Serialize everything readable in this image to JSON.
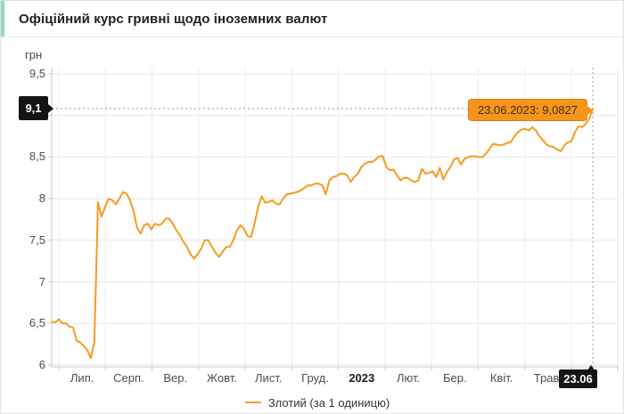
{
  "header": {
    "title": "Офіційний курс гривні щодо іноземних валют",
    "accent_color": "#93d8c4"
  },
  "unit_label": "грн",
  "chart_data": {
    "type": "line",
    "title": "Офіційний курс гривні щодо іноземних валют",
    "ylabel": "грн",
    "ylim": [
      6,
      9.5
    ],
    "grid": true,
    "legend_position": "bottom-center",
    "y_ticks": [
      {
        "label": "9,5",
        "value": 9.5
      },
      {
        "label": "9",
        "value": 9.0
      },
      {
        "label": "8,5",
        "value": 8.5
      },
      {
        "label": "8",
        "value": 8.0
      },
      {
        "label": "7,5",
        "value": 7.5
      },
      {
        "label": "7",
        "value": 7.0
      },
      {
        "label": "6,5",
        "value": 6.5
      },
      {
        "label": "6",
        "value": 6.0
      }
    ],
    "x_ticks": [
      {
        "label": "Лип.",
        "bold": false
      },
      {
        "label": "Серп.",
        "bold": false
      },
      {
        "label": "Вер.",
        "bold": false
      },
      {
        "label": "Жовт.",
        "bold": false
      },
      {
        "label": "Лист.",
        "bold": false
      },
      {
        "label": "Груд.",
        "bold": false
      },
      {
        "label": "2023",
        "bold": true
      },
      {
        "label": "Лют.",
        "bold": false
      },
      {
        "label": "Бер.",
        "bold": false
      },
      {
        "label": "Квіт.",
        "bold": false
      },
      {
        "label": "Трав.",
        "bold": false
      }
    ],
    "series": [
      {
        "name": "Злотий (за 1 одиницю)",
        "color": "#f79a1f",
        "note": "values evenly spaced over the displayed year, last value at 23.06.2023",
        "values": [
          6.52,
          6.51,
          6.55,
          6.5,
          6.5,
          6.46,
          6.45,
          6.29,
          6.27,
          6.23,
          6.18,
          6.08,
          6.28,
          7.96,
          7.78,
          7.9,
          8.0,
          7.98,
          7.93,
          8.0,
          8.08,
          8.06,
          7.98,
          7.85,
          7.65,
          7.58,
          7.68,
          7.7,
          7.63,
          7.7,
          7.68,
          7.7,
          7.76,
          7.76,
          7.7,
          7.62,
          7.56,
          7.48,
          7.42,
          7.33,
          7.28,
          7.33,
          7.4,
          7.5,
          7.5,
          7.42,
          7.35,
          7.3,
          7.36,
          7.42,
          7.42,
          7.5,
          7.62,
          7.68,
          7.64,
          7.55,
          7.54,
          7.7,
          7.9,
          8.03,
          7.95,
          7.96,
          7.98,
          7.94,
          7.93,
          8.0,
          8.05,
          8.06,
          8.07,
          8.08,
          8.1,
          8.13,
          8.16,
          8.16,
          8.18,
          8.18,
          8.16,
          8.05,
          8.22,
          8.26,
          8.27,
          8.3,
          8.3,
          8.28,
          8.2,
          8.26,
          8.3,
          8.38,
          8.42,
          8.44,
          8.44,
          8.47,
          8.51,
          8.51,
          8.38,
          8.34,
          8.35,
          8.28,
          8.22,
          8.25,
          8.25,
          8.22,
          8.2,
          8.22,
          8.36,
          8.3,
          8.31,
          8.33,
          8.26,
          8.37,
          8.23,
          8.32,
          8.38,
          8.47,
          8.49,
          8.41,
          8.48,
          8.5,
          8.51,
          8.51,
          8.5,
          8.5,
          8.54,
          8.6,
          8.66,
          8.65,
          8.64,
          8.65,
          8.67,
          8.68,
          8.75,
          8.8,
          8.83,
          8.84,
          8.82,
          8.86,
          8.82,
          8.75,
          8.7,
          8.65,
          8.63,
          8.62,
          8.59,
          8.57,
          8.64,
          8.68,
          8.69,
          8.8,
          8.87,
          8.86,
          8.9,
          8.96,
          9.0827
        ]
      }
    ],
    "annotations": {
      "tooltip_text": "23.06.2023: 9,0827",
      "point_date": "23.06.2023",
      "point_value": 9.0827,
      "y_axis_badge": "9,1",
      "x_axis_badge": "23.06",
      "badge_bg": "#141414",
      "tooltip_bg": "#f7941d"
    },
    "legend": {
      "label": "Злотий (за 1 одиницю)",
      "swatch_color": "#f79a1f"
    }
  }
}
